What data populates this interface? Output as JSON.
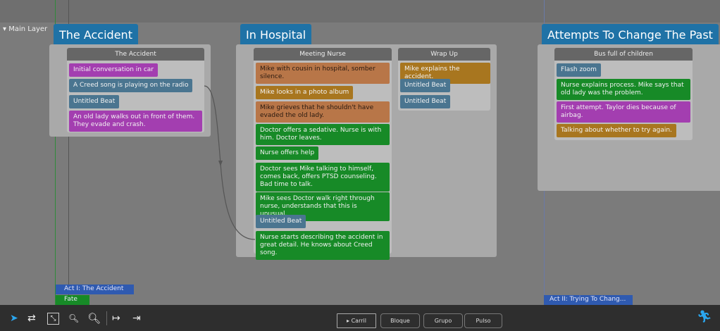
{
  "layer": {
    "label": "Main Layer"
  },
  "sequences": [
    {
      "title": "The Accident",
      "scenes": [
        {
          "title": "The Accident",
          "beats": [
            {
              "text": "Initial conversation in car",
              "color": "purple"
            },
            {
              "text": "A Creed song is playing on the radio",
              "color": "blue"
            },
            {
              "text": "Untitled Beat",
              "color": "blue"
            },
            {
              "text": "An old lady walks out in front of them. They evade and crash.",
              "color": "purple"
            }
          ]
        }
      ]
    },
    {
      "title": "In Hospital",
      "scenes": [
        {
          "title": "Meeting Nurse",
          "beats": [
            {
              "text": "Mike with cousin in hospital, somber silence.",
              "color": "orange"
            },
            {
              "text": "Mike looks in a photo album",
              "color": "gold"
            },
            {
              "text": "Mike grieves that he shouldn't have evaded the old lady.",
              "color": "orange"
            },
            {
              "text": "Doctor offers a sedative. Nurse is with him. Doctor leaves.",
              "color": "green"
            },
            {
              "text": "Nurse offers help",
              "color": "green"
            },
            {
              "text": "Doctor sees Mike talking to himself, comes back, offers PTSD counseling. Bad time to talk.",
              "color": "green"
            },
            {
              "text": "Mike sees Doctor walk right through nurse, understands that this is unusual.",
              "color": "green"
            },
            {
              "text": "Untitled Beat",
              "color": "blue"
            },
            {
              "text": "Nurse starts describing the accident in great detail. He knows about Creed song.",
              "color": "green"
            }
          ]
        },
        {
          "title": "Wrap Up",
          "beats": [
            {
              "text": "Mike explains the accident.",
              "color": "gold"
            },
            {
              "text": "Untitled Beat",
              "color": "blue"
            },
            {
              "text": "Untitled Beat",
              "color": "blue"
            }
          ]
        }
      ]
    },
    {
      "title": "Attempts To Change The Past",
      "scenes": [
        {
          "title": "Bus full of children",
          "beats": [
            {
              "text": "Flash zoom",
              "color": "blue"
            },
            {
              "text": "Nurse explains process. Mike says that old lady was the problem.",
              "color": "green"
            },
            {
              "text": "First attempt. Taylor dies because of airbag.",
              "color": "purple"
            },
            {
              "text": "Talking about whether to try again.",
              "color": "gold"
            }
          ]
        }
      ]
    }
  ],
  "acts": {
    "act1": "Act I: The Accident",
    "fate": "Fate",
    "act2": "Act II: Trying To Chang..."
  },
  "toolbar": {
    "modes": [
      "Carril",
      "Bloque",
      "Grupo",
      "Pulso"
    ],
    "icons": [
      "pointer-icon",
      "swap-icon",
      "fit-icon",
      "zoom-out-icon",
      "zoom-in-icon",
      "go-start-icon",
      "go-end-icon",
      "runner-icon"
    ]
  },
  "colors": {
    "purple": "#a33eb0",
    "blue": "#4a7590",
    "orange": "#b87648",
    "gold": "#a8761f",
    "green": "#178a27",
    "sequence": "#1f72a6",
    "act": "#2f5ab0"
  }
}
